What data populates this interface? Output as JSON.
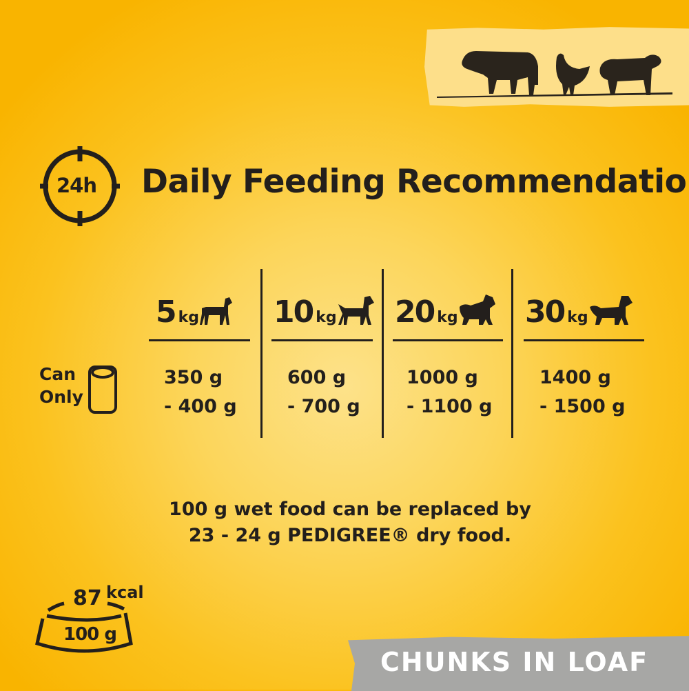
{
  "title": "Daily Feeding Recommendation",
  "clock_icon_label": "24h",
  "animals_banner": [
    "cow-icon",
    "chicken-icon",
    "sheep-icon"
  ],
  "row_label": [
    "Can",
    "Only"
  ],
  "columns": [
    {
      "weight": "5",
      "unit": "kg",
      "amount_line1": "350 g",
      "amount_line2": "- 400 g"
    },
    {
      "weight": "10",
      "unit": "kg",
      "amount_line1": "600 g",
      "amount_line2": "- 700 g"
    },
    {
      "weight": "20",
      "unit": "kg",
      "amount_line1": "1000 g",
      "amount_line2": "- 1100 g"
    },
    {
      "weight": "30",
      "unit": "kg",
      "amount_line1": "1400 g",
      "amount_line2": "- 1500 g"
    }
  ],
  "footnote_line1": "100 g wet food can be replaced by",
  "footnote_line2": "23 - 24 g PEDIGREE® dry food.",
  "bowl": {
    "kcal_value": "87",
    "kcal_unit": "kcal",
    "portion": "100 g"
  },
  "badge": "CHUNKS IN LOAF",
  "colors": {
    "background": "#f9b800",
    "text": "#231f1c",
    "badge": "#a7a7a5"
  }
}
